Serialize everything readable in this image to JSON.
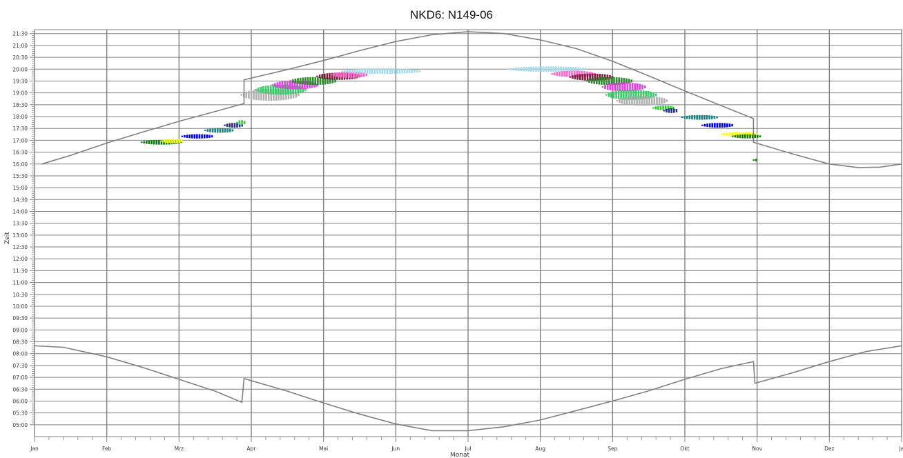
{
  "chart_data": {
    "type": "scatter",
    "title": "NKD6: N149-06",
    "xlabel": "Monat",
    "ylabel": "Zeit",
    "x_unit": "month",
    "xlim": [
      0,
      12
    ],
    "ylim": [
      "04:30",
      "21:40"
    ],
    "grid": true,
    "x_ticks": [
      "Jan",
      "Feb",
      "Mrz",
      "Apr",
      "Mai",
      "Jun",
      "Jul",
      "Aug",
      "Sep",
      "Okt",
      "Nov",
      "Dez",
      "Ja"
    ],
    "y_ticks": [
      "21:30",
      "21:00",
      "20:30",
      "20:00",
      "19:30",
      "19:00",
      "18:30",
      "18:00",
      "17:30",
      "17:00",
      "16:30",
      "16:00",
      "15:30",
      "15:00",
      "14:30",
      "14:00",
      "13:30",
      "13:00",
      "12:30",
      "12:00",
      "11:30",
      "11:00",
      "10:30",
      "10:00",
      "09:30",
      "09:00",
      "08:30",
      "08:00",
      "07:30",
      "07:00",
      "06:30",
      "06:00",
      "05:30",
      "05:00"
    ],
    "series": [
      {
        "key": "sunset",
        "color": "#808080",
        "points": [
          [
            0.1,
            "16:00"
          ],
          [
            0.5,
            "16:22"
          ],
          [
            1.0,
            "16:53"
          ],
          [
            1.5,
            "17:21"
          ],
          [
            2.0,
            "17:48"
          ],
          [
            2.5,
            "18:13"
          ],
          [
            2.9,
            "18:33"
          ],
          [
            2.9,
            "19:33"
          ],
          [
            3.5,
            "19:59"
          ],
          [
            4.0,
            "20:22"
          ],
          [
            4.5,
            "20:47"
          ],
          [
            5.0,
            "21:10"
          ],
          [
            5.5,
            "21:27"
          ],
          [
            6.0,
            "21:35"
          ],
          [
            6.5,
            "21:30"
          ],
          [
            7.0,
            "21:14"
          ],
          [
            7.5,
            "20:52"
          ],
          [
            8.0,
            "20:20"
          ],
          [
            8.5,
            "19:43"
          ],
          [
            9.0,
            "19:05"
          ],
          [
            9.5,
            "18:28"
          ],
          [
            9.95,
            "17:55"
          ],
          [
            9.95,
            "16:55"
          ],
          [
            10.5,
            "16:25"
          ],
          [
            11.0,
            "16:00"
          ],
          [
            11.4,
            "15:51"
          ],
          [
            11.7,
            "15:52"
          ],
          [
            12.0,
            "16:00"
          ]
        ]
      },
      {
        "key": "sunrise",
        "color": "#808080",
        "points": [
          [
            0.0,
            "08:20"
          ],
          [
            0.4,
            "08:16"
          ],
          [
            1.0,
            "07:52"
          ],
          [
            1.5,
            "07:25"
          ],
          [
            2.0,
            "06:55"
          ],
          [
            2.5,
            "06:25"
          ],
          [
            2.87,
            "05:57"
          ],
          [
            2.9,
            "06:57"
          ],
          [
            3.5,
            "06:25"
          ],
          [
            4.0,
            "05:55"
          ],
          [
            4.5,
            "05:27"
          ],
          [
            5.0,
            "05:02"
          ],
          [
            5.5,
            "04:45"
          ],
          [
            6.0,
            "04:45"
          ],
          [
            6.5,
            "04:55"
          ],
          [
            7.0,
            "05:12"
          ],
          [
            7.5,
            "05:36"
          ],
          [
            8.0,
            "06:00"
          ],
          [
            8.5,
            "06:26"
          ],
          [
            9.0,
            "06:55"
          ],
          [
            9.5,
            "07:22"
          ],
          [
            9.95,
            "07:40"
          ],
          [
            9.97,
            "06:45"
          ],
          [
            10.5,
            "07:12"
          ],
          [
            11.0,
            "07:40"
          ],
          [
            11.5,
            "08:05"
          ],
          [
            12.0,
            "08:20"
          ]
        ]
      }
    ],
    "shadow_clusters": [
      {
        "center": [
          1.75,
          "16:55"
        ],
        "rx": 0.28,
        "ry_min": 12,
        "color": "#0a7a0a"
      },
      {
        "center": [
          1.9,
          "16:58"
        ],
        "rx": 0.15,
        "ry_min": 9,
        "color": "#ffff00"
      },
      {
        "center": [
          2.25,
          "17:10"
        ],
        "rx": 0.22,
        "ry_min": 11,
        "color": "#0000ee"
      },
      {
        "center": [
          2.55,
          "17:25"
        ],
        "rx": 0.2,
        "ry_min": 12,
        "color": "#1e7f7f"
      },
      {
        "center": [
          2.75,
          "17:38"
        ],
        "rx": 0.13,
        "ry_min": 12,
        "color": "#2a2a8a"
      },
      {
        "center": [
          2.85,
          "17:45"
        ],
        "rx": 0.06,
        "ry_min": 12,
        "color": "#33cc33"
      },
      {
        "center": [
          3.25,
          "18:55"
        ],
        "rx": 0.4,
        "ry_min": 30,
        "color": "#b0b0b0"
      },
      {
        "center": [
          3.4,
          "19:08"
        ],
        "rx": 0.35,
        "ry_min": 25,
        "color": "#33cc66"
      },
      {
        "center": [
          3.6,
          "19:20"
        ],
        "rx": 0.32,
        "ry_min": 22,
        "color": "#e040e0"
      },
      {
        "center": [
          3.85,
          "19:30"
        ],
        "rx": 0.32,
        "ry_min": 20,
        "color": "#2e8b2e"
      },
      {
        "center": [
          4.2,
          "19:42"
        ],
        "rx": 0.3,
        "ry_min": 18,
        "color": "#7a1a3a"
      },
      {
        "center": [
          4.35,
          "19:46"
        ],
        "rx": 0.25,
        "ry_min": 16,
        "color": "#ff66cc"
      },
      {
        "center": [
          4.8,
          "19:55"
        ],
        "rx": 0.55,
        "ry_min": 14,
        "color": "#a6dbea"
      },
      {
        "center": [
          7.1,
          "20:00"
        ],
        "rx": 0.55,
        "ry_min": 14,
        "color": "#a6dbea"
      },
      {
        "center": [
          7.45,
          "19:48"
        ],
        "rx": 0.3,
        "ry_min": 16,
        "color": "#ff66cc"
      },
      {
        "center": [
          7.7,
          "19:40"
        ],
        "rx": 0.3,
        "ry_min": 18,
        "color": "#7a1a3a"
      },
      {
        "center": [
          7.95,
          "19:30"
        ],
        "rx": 0.32,
        "ry_min": 20,
        "color": "#2e8b2e"
      },
      {
        "center": [
          8.15,
          "19:15"
        ],
        "rx": 0.3,
        "ry_min": 22,
        "color": "#e040e0"
      },
      {
        "center": [
          8.25,
          "18:55"
        ],
        "rx": 0.35,
        "ry_min": 25,
        "color": "#33cc66"
      },
      {
        "center": [
          8.4,
          "18:40"
        ],
        "rx": 0.35,
        "ry_min": 25,
        "color": "#b0b0b0"
      },
      {
        "center": [
          8.7,
          "18:22"
        ],
        "rx": 0.15,
        "ry_min": 12,
        "color": "#33cc33"
      },
      {
        "center": [
          8.8,
          "18:15"
        ],
        "rx": 0.1,
        "ry_min": 12,
        "color": "#2a2a8a"
      },
      {
        "center": [
          9.2,
          "17:58"
        ],
        "rx": 0.25,
        "ry_min": 12,
        "color": "#1e7f7f"
      },
      {
        "center": [
          9.45,
          "17:38"
        ],
        "rx": 0.22,
        "ry_min": 12,
        "color": "#0000ee"
      },
      {
        "center": [
          9.75,
          "17:15"
        ],
        "rx": 0.25,
        "ry_min": 12,
        "color": "#ffff00"
      },
      {
        "center": [
          9.85,
          "17:10"
        ],
        "rx": 0.2,
        "ry_min": 8,
        "color": "#0a7a0a"
      },
      {
        "center": [
          9.96,
          "16:10"
        ],
        "rx": 0.015,
        "ry_min": 4,
        "color": "#0a7a0a"
      }
    ]
  }
}
